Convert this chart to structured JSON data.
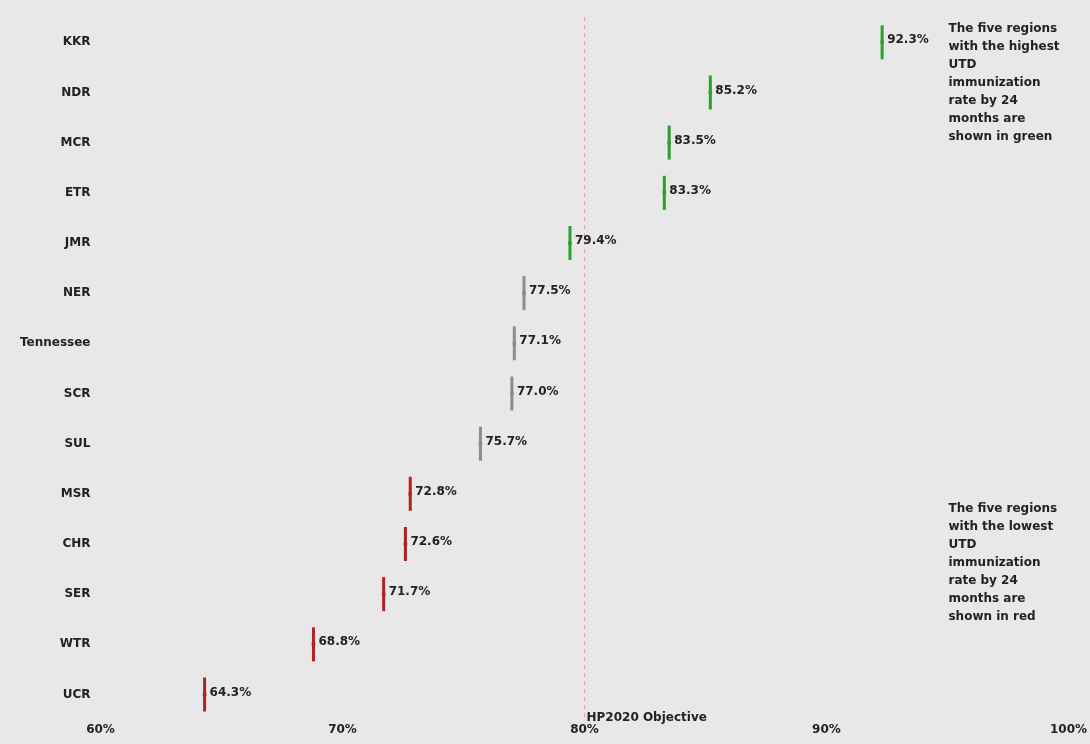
{
  "chart_data": {
    "type": "scatter",
    "orientation": "horizontal",
    "categories": [
      "KKR",
      "NDR",
      "MCR",
      "ETR",
      "JMR",
      "NER",
      "Tennessee",
      "SCR",
      "SUL",
      "MSR",
      "CHR",
      "SER",
      "WTR",
      "UCR"
    ],
    "values": [
      92.3,
      85.2,
      83.5,
      83.3,
      79.4,
      77.5,
      77.1,
      77.0,
      75.7,
      72.8,
      72.6,
      71.7,
      68.8,
      64.3
    ],
    "value_labels": [
      "92.3%",
      "85.2%",
      "83.5%",
      "83.3%",
      "79.4%",
      "77.5%",
      "77.1%",
      "77.0%",
      "75.7%",
      "72.8%",
      "72.6%",
      "71.7%",
      "68.8%",
      "64.3%"
    ],
    "colors": [
      "#2ca02c",
      "#2ca02c",
      "#2ca02c",
      "#2ca02c",
      "#2ca02c",
      "#8c8c8c",
      "#8c8c8c",
      "#8c8c8c",
      "#8c8c8c",
      "#b22222",
      "#b22222",
      "#b22222",
      "#b22222",
      "#b22222"
    ],
    "xlim": [
      60,
      100
    ],
    "xticks": [
      {
        "value": 60,
        "label": "60%"
      },
      {
        "value": 70,
        "label": "70%"
      },
      {
        "value": 80,
        "label": "80%"
      },
      {
        "value": 90,
        "label": "90%"
      },
      {
        "value": 100,
        "label": "100%"
      }
    ],
    "ref_lines": [
      {
        "axis": "x",
        "value": 80,
        "label": "HP2020 Objective",
        "color": "#e8a090",
        "line_style": "dashed"
      }
    ],
    "annotations": [
      "The five regions with the highest UTD immunization rate by 24 months are shown in green",
      "The five regions with the lowest UTD immunization rate by 24 months are shown in red"
    ],
    "grid": false,
    "legend": false,
    "marker": "square"
  }
}
